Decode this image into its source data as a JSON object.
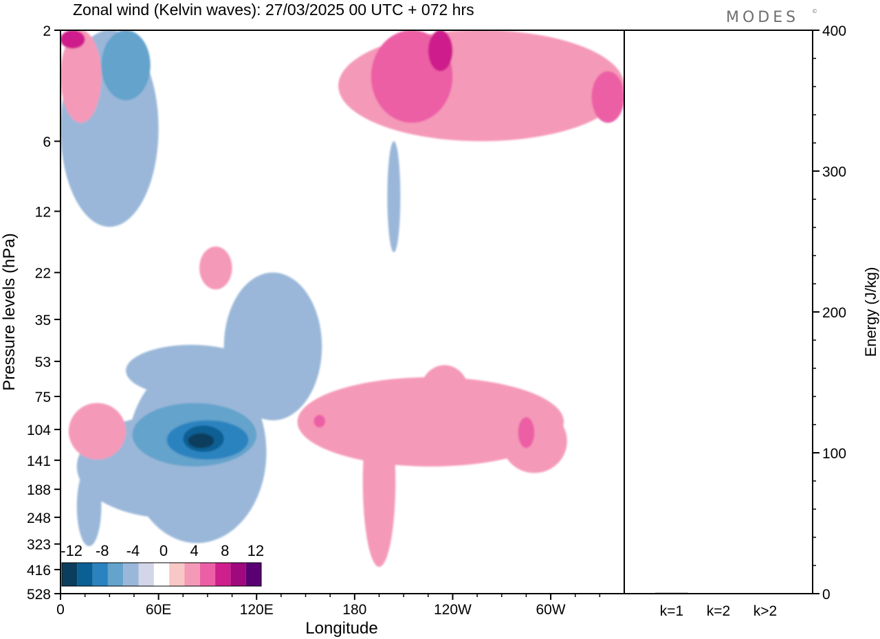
{
  "chart_data": [
    {
      "type": "heatmap",
      "title": "Zonal wind (Kelvin waves):  27/03/2025  00 UTC  + 072 hrs",
      "xlabel": "Longitude",
      "ylabel": "Pressure levels (hPa)",
      "x_tick_labels": [
        "0",
        "60E",
        "120E",
        "180",
        "120W",
        "60W"
      ],
      "x_range_deg": [
        0,
        345
      ],
      "y_levels_hPa": [
        "2",
        "6",
        "12",
        "22",
        "35",
        "53",
        "75",
        "104",
        "141",
        "188",
        "248",
        "323",
        "416",
        "528"
      ],
      "y_scale": "log",
      "colorbar": {
        "tick_labels": [
          "-12",
          "-8",
          "-4",
          "0",
          "4",
          "8",
          "12"
        ],
        "colors": [
          "#0b3d5c",
          "#0a5f94",
          "#2a83bf",
          "#64a3cc",
          "#9ab7d9",
          "#d2d6e8",
          "#ffffff",
          "#f8c8c6",
          "#f599b8",
          "#ec5fa5",
          "#cf1f8c",
          "#a0087d",
          "#5b0073"
        ],
        "placement": "bottom-left"
      },
      "regions": [
        {
          "level": -4,
          "lon": [
            41,
            126
          ],
          "p": [
            53,
            320
          ]
        },
        {
          "level": -4,
          "lon": [
            10,
            125
          ],
          "p": [
            90,
            250
          ]
        },
        {
          "level": -4,
          "lon": [
            100,
            160
          ],
          "p": [
            22,
            95
          ]
        },
        {
          "level": -4,
          "lon": [
            0,
            60
          ],
          "p": [
            2,
            14
          ]
        },
        {
          "level": -4,
          "lon": [
            10,
            25
          ],
          "p": [
            150,
            330
          ]
        },
        {
          "level": -4,
          "lon": [
            40,
            120
          ],
          "p": [
            45,
            75
          ]
        },
        {
          "level": -4,
          "lon": [
            200,
            208
          ],
          "p": [
            6,
            18
          ]
        },
        {
          "level": -6,
          "lon": [
            44,
            120
          ],
          "p": [
            80,
            150
          ]
        },
        {
          "level": -6,
          "lon": [
            25,
            55
          ],
          "p": [
            2,
            4
          ]
        },
        {
          "level": -8,
          "lon": [
            65,
            115
          ],
          "p": [
            95,
            140
          ]
        },
        {
          "level": -10,
          "lon": [
            75,
            100
          ],
          "p": [
            100,
            130
          ]
        },
        {
          "level": -12,
          "lon": [
            78,
            94
          ],
          "p": [
            108,
            125
          ]
        },
        {
          "level": 4,
          "lon": [
            145,
            308
          ],
          "p": [
            62,
            150
          ]
        },
        {
          "level": 4,
          "lon": [
            185,
            205
          ],
          "p": [
            75,
            405
          ]
        },
        {
          "level": 4,
          "lon": [
            270,
            310
          ],
          "p": [
            85,
            160
          ]
        },
        {
          "level": 4,
          "lon": [
            170,
            345
          ],
          "p": [
            2,
            6
          ]
        },
        {
          "level": 4,
          "lon": [
            220,
            250
          ],
          "p": [
            55,
            95
          ]
        },
        {
          "level": 4,
          "lon": [
            5,
            40
          ],
          "p": [
            80,
            140
          ]
        },
        {
          "level": 4,
          "lon": [
            85,
            105
          ],
          "p": [
            17,
            26
          ]
        },
        {
          "level": 4,
          "lon": [
            0,
            25
          ],
          "p": [
            2,
            5
          ]
        },
        {
          "level": 6,
          "lon": [
            190,
            240
          ],
          "p": [
            2,
            5
          ]
        },
        {
          "level": 6,
          "lon": [
            325,
            345
          ],
          "p": [
            3,
            5
          ]
        },
        {
          "level": 6,
          "lon": [
            280,
            290
          ],
          "p": [
            92,
            125
          ]
        },
        {
          "level": 6,
          "lon": [
            155,
            162
          ],
          "p": [
            90,
            102
          ]
        },
        {
          "level": 8,
          "lon": [
            225,
            240
          ],
          "p": [
            2,
            3
          ]
        },
        {
          "level": 8,
          "lon": [
            0,
            15
          ],
          "p": [
            2,
            2.4
          ]
        }
      ]
    },
    {
      "type": "bar",
      "categories": [
        "k=1",
        "k=2",
        "k>2"
      ],
      "values": [
        0.6,
        0.4,
        0.4
      ],
      "ylabel": "Energy (J/kg)",
      "ylim": [
        0,
        400
      ],
      "y_tick_labels": [
        "0",
        "100",
        "200",
        "300",
        "400"
      ]
    }
  ],
  "brand": "MODES",
  "brand_mark": "©"
}
